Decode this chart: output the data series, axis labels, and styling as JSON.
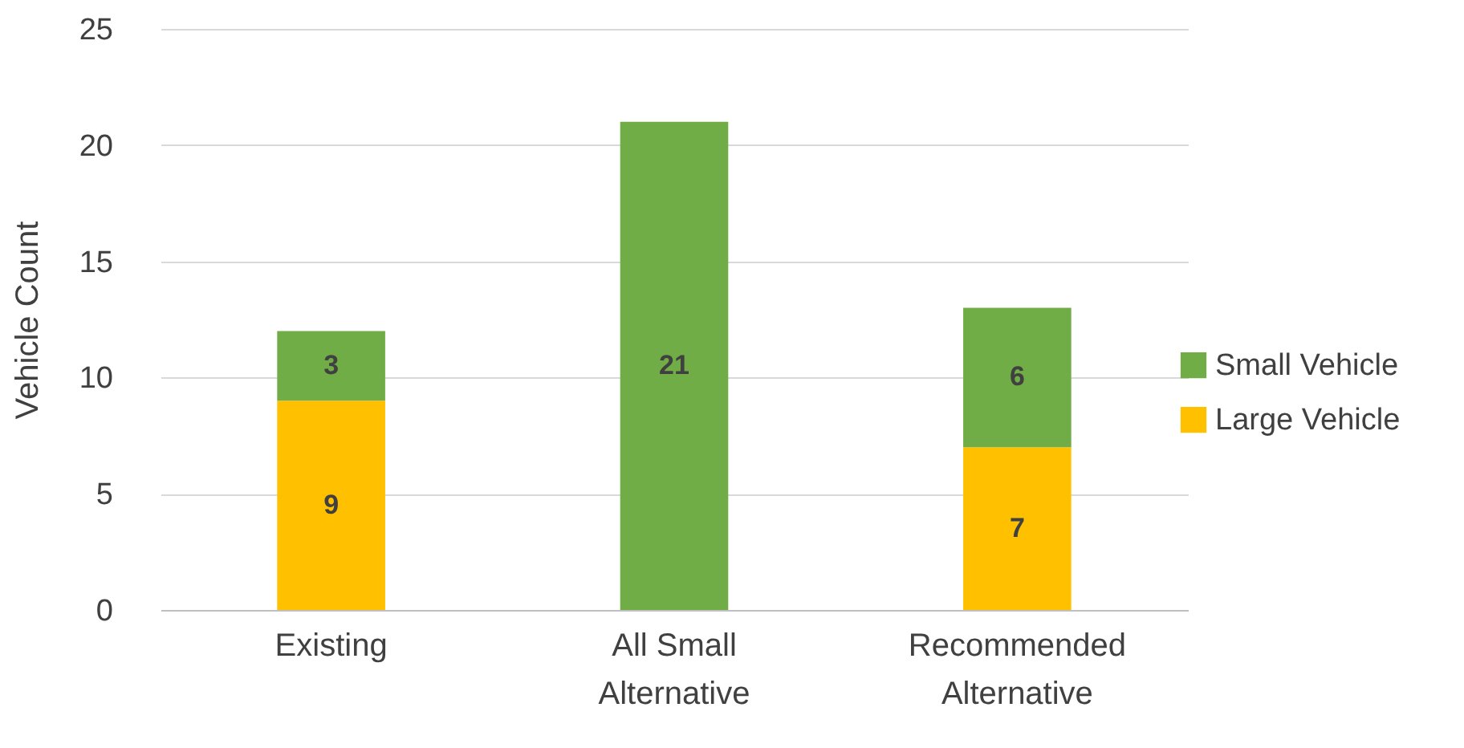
{
  "chart_data": {
    "type": "bar",
    "stacked": true,
    "ylabel": "Vehicle Count",
    "categories": [
      "Existing",
      "All Small Alternative",
      "Recommended Alternative"
    ],
    "series": [
      {
        "name": "Large Vehicle",
        "color": "#ffc000",
        "values": [
          9,
          null,
          7
        ],
        "value_labels": [
          "9",
          null,
          "7"
        ]
      },
      {
        "name": "Small Vehicle",
        "color": "#70ad47",
        "values": [
          3,
          21,
          6
        ],
        "value_labels": [
          "3",
          "21",
          "6"
        ]
      }
    ],
    "ylim": [
      0,
      25
    ],
    "yticks": [
      0,
      5,
      10,
      15,
      20,
      25
    ],
    "grid": "y",
    "legend": "right"
  }
}
